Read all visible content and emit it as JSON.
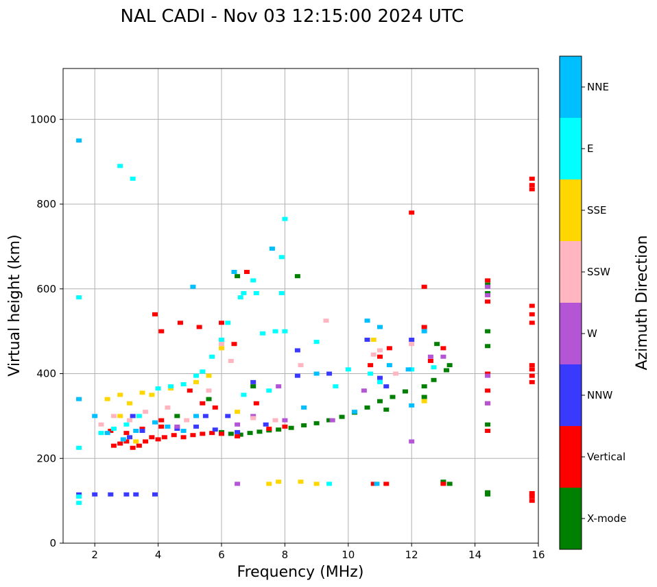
{
  "chart_data": {
    "type": "scatter",
    "title": "NAL CADI - Nov 03 12:15:00 2024 UTC",
    "xlabel": "Frequency (MHz)",
    "ylabel": "Virtual height (km)",
    "xlim": [
      1,
      16
    ],
    "ylim": [
      0,
      1120
    ],
    "xticks": [
      2,
      4,
      6,
      8,
      10,
      12,
      14,
      16
    ],
    "yticks": [
      0,
      200,
      400,
      600,
      800,
      1000
    ],
    "grid": true,
    "colorbar": {
      "label": "Azimuth Direction",
      "entries": [
        {
          "name": "X-mode",
          "color": "#008000"
        },
        {
          "name": "Vertical",
          "color": "#ff0000"
        },
        {
          "name": "NNW",
          "color": "#3a3aff"
        },
        {
          "name": "W",
          "color": "#b455d6"
        },
        {
          "name": "SSW",
          "color": "#ffb6c1"
        },
        {
          "name": "SSE",
          "color": "#ffd700"
        },
        {
          "name": "E",
          "color": "#00ffff"
        },
        {
          "name": "NNE",
          "color": "#00bfff"
        }
      ]
    },
    "series": [
      {
        "name": "X-mode",
        "points": [
          [
            6.0,
            262
          ],
          [
            6.3,
            258
          ],
          [
            6.6,
            256
          ],
          [
            6.9,
            260
          ],
          [
            7.2,
            263
          ],
          [
            7.5,
            266
          ],
          [
            7.8,
            268
          ],
          [
            8.2,
            272
          ],
          [
            8.6,
            278
          ],
          [
            9.0,
            283
          ],
          [
            9.4,
            290
          ],
          [
            9.8,
            298
          ],
          [
            10.2,
            308
          ],
          [
            10.6,
            320
          ],
          [
            11.0,
            335
          ],
          [
            11.4,
            345
          ],
          [
            11.8,
            358
          ],
          [
            12.4,
            370
          ],
          [
            12.7,
            385
          ],
          [
            13.1,
            408
          ],
          [
            13.2,
            420
          ],
          [
            11.2,
            315
          ],
          [
            12.4,
            345
          ],
          [
            12.8,
            470
          ],
          [
            14.4,
            115
          ],
          [
            14.4,
            120
          ],
          [
            14.4,
            280
          ],
          [
            14.4,
            465
          ],
          [
            14.4,
            500
          ],
          [
            14.4,
            590
          ],
          [
            14.4,
            610
          ],
          [
            13.0,
            145
          ],
          [
            13.2,
            140
          ],
          [
            8.4,
            630
          ],
          [
            6.5,
            630
          ],
          [
            7.0,
            370
          ],
          [
            5.6,
            340
          ],
          [
            4.6,
            300
          ]
        ]
      },
      {
        "name": "Vertical",
        "points": [
          [
            2.6,
            230
          ],
          [
            2.8,
            235
          ],
          [
            3.0,
            240
          ],
          [
            3.2,
            225
          ],
          [
            3.4,
            230
          ],
          [
            3.6,
            240
          ],
          [
            3.8,
            250
          ],
          [
            4.0,
            245
          ],
          [
            4.2,
            250
          ],
          [
            4.5,
            255
          ],
          [
            4.8,
            250
          ],
          [
            5.1,
            255
          ],
          [
            5.4,
            258
          ],
          [
            5.7,
            260
          ],
          [
            6.0,
            258
          ],
          [
            6.5,
            252
          ],
          [
            7.5,
            270
          ],
          [
            8.0,
            275
          ],
          [
            3.0,
            260
          ],
          [
            3.5,
            270
          ],
          [
            4.1,
            275
          ],
          [
            2.5,
            265
          ],
          [
            3.9,
            540
          ],
          [
            4.1,
            500
          ],
          [
            4.7,
            520
          ],
          [
            5.3,
            510
          ],
          [
            6.0,
            520
          ],
          [
            6.4,
            470
          ],
          [
            5.0,
            360
          ],
          [
            5.4,
            330
          ],
          [
            5.8,
            320
          ],
          [
            7.1,
            330
          ],
          [
            10.7,
            420
          ],
          [
            11.0,
            440
          ],
          [
            11.3,
            460
          ],
          [
            12.0,
            780
          ],
          [
            12.4,
            605
          ],
          [
            12.4,
            510
          ],
          [
            12.6,
            430
          ],
          [
            13.0,
            460
          ],
          [
            14.4,
            265
          ],
          [
            14.4,
            330
          ],
          [
            14.4,
            360
          ],
          [
            14.4,
            400
          ],
          [
            14.4,
            570
          ],
          [
            14.4,
            620
          ],
          [
            15.8,
            100
          ],
          [
            15.8,
            110
          ],
          [
            15.8,
            118
          ],
          [
            15.8,
            380
          ],
          [
            15.8,
            395
          ],
          [
            15.8,
            410
          ],
          [
            15.8,
            420
          ],
          [
            15.8,
            520
          ],
          [
            15.8,
            540
          ],
          [
            15.8,
            560
          ],
          [
            15.8,
            835
          ],
          [
            15.8,
            845
          ],
          [
            15.8,
            860
          ],
          [
            10.8,
            140
          ],
          [
            11.2,
            140
          ],
          [
            13.0,
            140
          ],
          [
            6.8,
            640
          ],
          [
            4.1,
            290
          ]
        ]
      },
      {
        "name": "NNW",
        "points": [
          [
            1.5,
            115
          ],
          [
            2.0,
            115
          ],
          [
            2.5,
            115
          ],
          [
            3.0,
            115
          ],
          [
            3.3,
            115
          ],
          [
            3.9,
            115
          ],
          [
            3.1,
            250
          ],
          [
            3.5,
            265
          ],
          [
            4.6,
            270
          ],
          [
            5.2,
            275
          ],
          [
            5.8,
            268
          ],
          [
            6.5,
            262
          ],
          [
            7.4,
            280
          ],
          [
            8.4,
            455
          ],
          [
            8.4,
            395
          ],
          [
            10.6,
            480
          ],
          [
            11.0,
            390
          ],
          [
            11.2,
            370
          ],
          [
            9.4,
            400
          ],
          [
            7.0,
            380
          ],
          [
            6.2,
            300
          ],
          [
            5.5,
            300
          ],
          [
            12.0,
            480
          ],
          [
            3.2,
            300
          ]
        ]
      },
      {
        "name": "W",
        "points": [
          [
            6.5,
            280
          ],
          [
            6.5,
            140
          ],
          [
            7.0,
            300
          ],
          [
            8.0,
            290
          ],
          [
            12.0,
            240
          ],
          [
            12.6,
            440
          ],
          [
            13.0,
            440
          ],
          [
            14.4,
            330
          ],
          [
            14.4,
            395
          ],
          [
            14.4,
            585
          ],
          [
            14.4,
            605
          ],
          [
            10.5,
            360
          ],
          [
            9.5,
            290
          ],
          [
            4.6,
            275
          ],
          [
            7.8,
            370
          ]
        ]
      },
      {
        "name": "SSW",
        "points": [
          [
            2.2,
            280
          ],
          [
            2.6,
            300
          ],
          [
            3.1,
            290
          ],
          [
            3.6,
            310
          ],
          [
            4.3,
            320
          ],
          [
            4.9,
            290
          ],
          [
            5.6,
            360
          ],
          [
            6.0,
            470
          ],
          [
            6.3,
            430
          ],
          [
            7.0,
            295
          ],
          [
            7.7,
            290
          ],
          [
            8.5,
            420
          ],
          [
            9.3,
            525
          ],
          [
            10.8,
            445
          ],
          [
            11.0,
            455
          ],
          [
            12.0,
            470
          ],
          [
            11.5,
            400
          ]
        ]
      },
      {
        "name": "SSE",
        "points": [
          [
            2.4,
            340
          ],
          [
            2.8,
            350
          ],
          [
            3.1,
            330
          ],
          [
            3.5,
            355
          ],
          [
            3.8,
            350
          ],
          [
            4.4,
            365
          ],
          [
            5.2,
            380
          ],
          [
            5.6,
            395
          ],
          [
            6.0,
            460
          ],
          [
            8.5,
            145
          ],
          [
            9.0,
            140
          ],
          [
            7.8,
            145
          ],
          [
            7.5,
            140
          ],
          [
            6.5,
            310
          ],
          [
            10.8,
            480
          ],
          [
            12.4,
            335
          ],
          [
            2.8,
            300
          ],
          [
            3.3,
            240
          ]
        ]
      },
      {
        "name": "E",
        "points": [
          [
            1.5,
            95
          ],
          [
            1.5,
            110
          ],
          [
            1.5,
            225
          ],
          [
            1.5,
            580
          ],
          [
            2.2,
            260
          ],
          [
            2.6,
            270
          ],
          [
            3.0,
            280
          ],
          [
            3.4,
            300
          ],
          [
            4.0,
            365
          ],
          [
            4.4,
            370
          ],
          [
            4.8,
            375
          ],
          [
            5.2,
            395
          ],
          [
            5.4,
            405
          ],
          [
            5.7,
            440
          ],
          [
            6.0,
            480
          ],
          [
            6.2,
            520
          ],
          [
            6.7,
            590
          ],
          [
            7.1,
            590
          ],
          [
            7.3,
            495
          ],
          [
            7.7,
            500
          ],
          [
            8.0,
            500
          ],
          [
            7.9,
            590
          ],
          [
            6.6,
            580
          ],
          [
            9.0,
            475
          ],
          [
            9.4,
            140
          ],
          [
            10.0,
            410
          ],
          [
            10.7,
            400
          ],
          [
            11.0,
            380
          ],
          [
            12.0,
            410
          ],
          [
            12.7,
            415
          ],
          [
            6.7,
            350
          ],
          [
            7.5,
            360
          ],
          [
            9.6,
            370
          ],
          [
            2.8,
            890
          ],
          [
            3.2,
            860
          ],
          [
            8.0,
            765
          ],
          [
            7.9,
            675
          ],
          [
            7.0,
            620
          ]
        ]
      },
      {
        "name": "NNE",
        "points": [
          [
            1.5,
            950
          ],
          [
            1.5,
            340
          ],
          [
            2.0,
            300
          ],
          [
            2.4,
            260
          ],
          [
            2.9,
            245
          ],
          [
            3.3,
            265
          ],
          [
            3.9,
            285
          ],
          [
            4.3,
            275
          ],
          [
            4.8,
            265
          ],
          [
            5.2,
            300
          ],
          [
            5.1,
            605
          ],
          [
            6.4,
            640
          ],
          [
            7.6,
            695
          ],
          [
            8.6,
            320
          ],
          [
            9.0,
            400
          ],
          [
            10.2,
            310
          ],
          [
            10.6,
            525
          ],
          [
            11.0,
            510
          ],
          [
            11.3,
            420
          ],
          [
            11.9,
            410
          ],
          [
            12.0,
            325
          ],
          [
            10.9,
            140
          ],
          [
            12.4,
            500
          ]
        ]
      }
    ]
  }
}
